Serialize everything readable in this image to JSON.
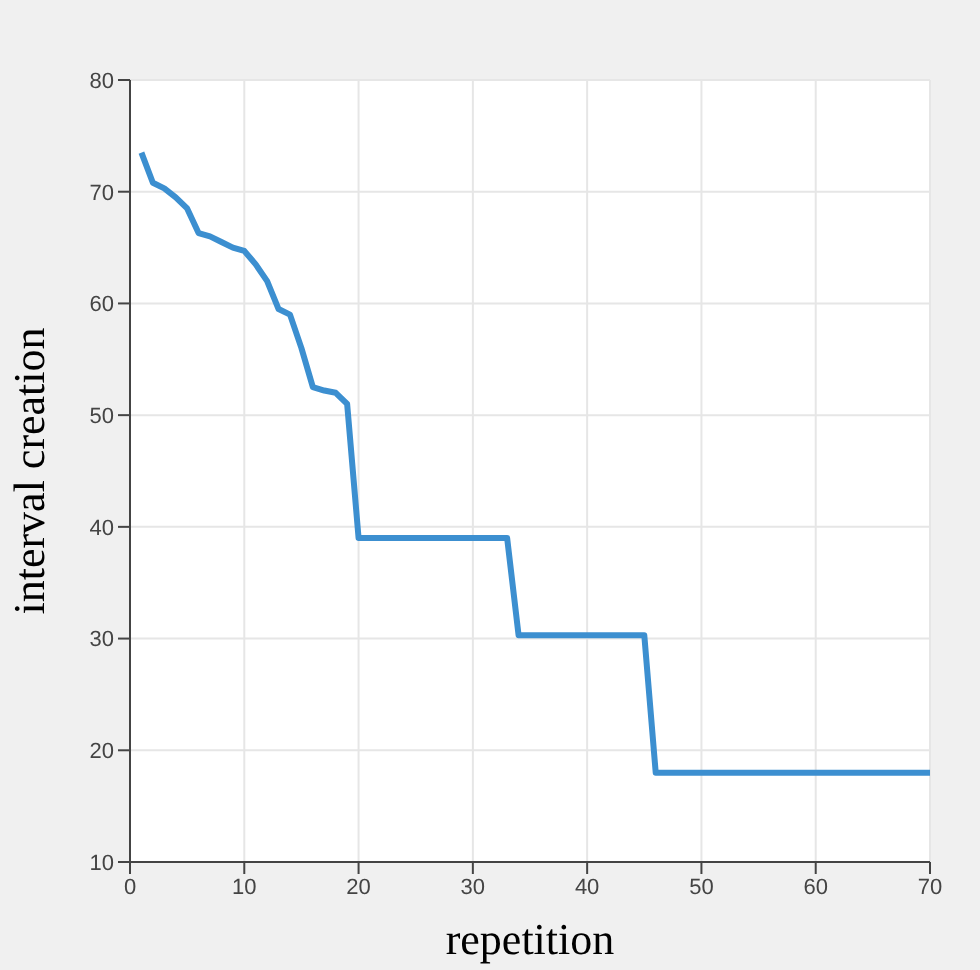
{
  "chart_data": {
    "type": "line",
    "xlabel": "repetition",
    "ylabel": "interval creation",
    "xlim": [
      0,
      70
    ],
    "xticks": [
      0,
      10,
      20,
      30,
      40,
      50,
      60,
      70
    ],
    "ylim": [
      10,
      80
    ],
    "yticks": [
      10,
      20,
      30,
      40,
      50,
      60,
      70,
      80
    ],
    "grid": true,
    "marker": "none",
    "line_style": "solid",
    "series": [
      {
        "color": "#3c8fd0",
        "x": [
          1,
          2,
          3,
          4,
          5,
          6,
          7,
          8,
          9,
          10,
          11,
          12,
          13,
          14,
          15,
          16,
          17,
          18,
          19,
          20,
          33,
          34,
          45,
          46,
          70
        ],
        "values": [
          73.5,
          70.8,
          70.3,
          69.5,
          68.5,
          66.3,
          66,
          65.5,
          65,
          64.7,
          63.5,
          62,
          59.5,
          59,
          56,
          52.5,
          52.2,
          52,
          51,
          39,
          39,
          30.3,
          30.3,
          18,
          18
        ]
      }
    ]
  }
}
